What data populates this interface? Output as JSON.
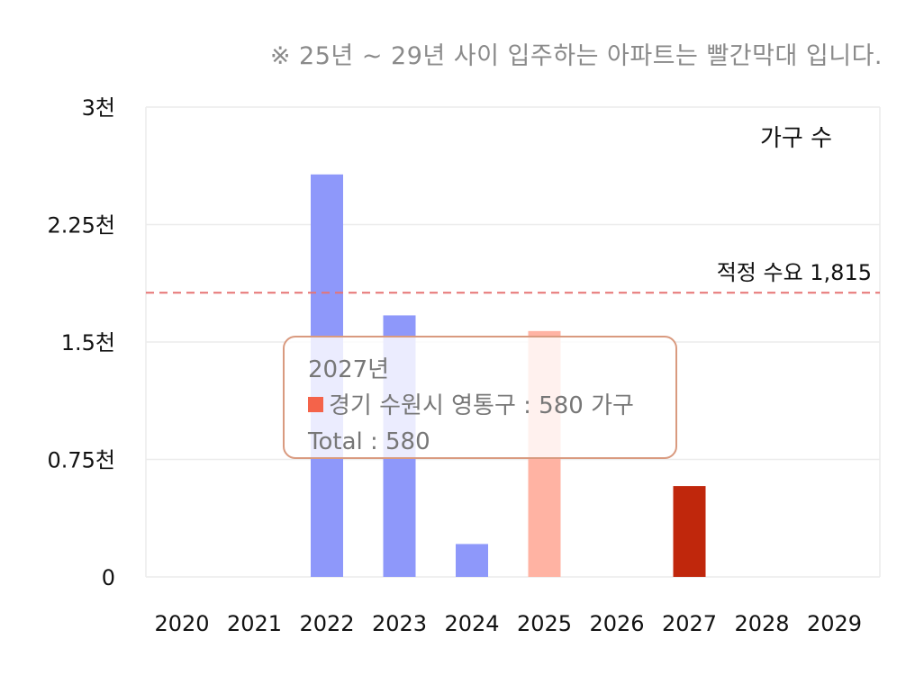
{
  "note": "※ 25년 ~ 29년 사이 입주하는 아파트는 빨간막대 입니다.",
  "chart_data": {
    "type": "bar",
    "categories": [
      "2020",
      "2021",
      "2022",
      "2023",
      "2024",
      "2025",
      "2026",
      "2027",
      "2028",
      "2029"
    ],
    "values": [
      0,
      0,
      2570,
      1670,
      210,
      1570,
      0,
      580,
      0,
      0
    ],
    "bar_colors": [
      "#8e98fa",
      "#8e98fa",
      "#8e98fa",
      "#8e98fa",
      "#8e98fa",
      "#ffb3a3",
      "#ffb3a3",
      "#c0270c",
      "#ffb3a3",
      "#ffb3a3"
    ],
    "ylim": [
      0,
      3000
    ],
    "y_ticks": [
      0,
      750,
      1500,
      2250,
      3000
    ],
    "y_tick_labels": [
      "0",
      "0.75천",
      "1.5천",
      "2.25천",
      "3천"
    ],
    "unit_label": "가구 수",
    "reference_line": {
      "value": 1815,
      "label": "적정 수요 1,815",
      "color": "#e57373",
      "style": "dashed"
    },
    "grid": true,
    "tooltip": {
      "title": "2027년",
      "line": "경기 수원시 영통구 : 580 가구",
      "total": "Total : 580",
      "swatch_color": "#f4634a"
    }
  }
}
